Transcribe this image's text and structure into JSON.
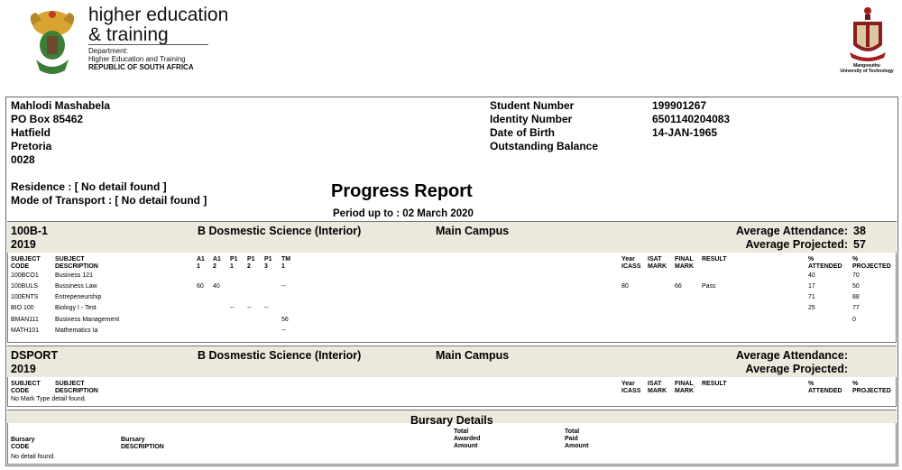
{
  "header": {
    "brand_line1": "higher education",
    "brand_line2": "& training",
    "dept_line1": "Department:",
    "dept_line2": "Higher Education and Training",
    "dept_line3": "REPUBLIC OF SOUTH AFRICA",
    "university_name_line1": "Mangosuthu",
    "university_name_line2": "University of Technology"
  },
  "student": {
    "name": "Mahlodi Mashabela",
    "address1": "PO Box 85462",
    "address2": "Hatfield",
    "address3": "Pretoria",
    "postal_code": "0028",
    "residence": "Residence : [ No detail found ]",
    "transport": "Mode of Transport : [ No detail found ]",
    "labels": [
      "Student Number",
      "Identity Number",
      "Date of Birth",
      "Outstanding Balance"
    ],
    "student_number": "199901267",
    "identity_number": "6501140204083",
    "date_of_birth": "14-JAN-1965",
    "outstanding_balance": ""
  },
  "report": {
    "title": "Progress Report",
    "period": "Period up to : 02 March 2020"
  },
  "columns": {
    "subject_code_1": "SUBJECT",
    "subject_code_2": "CODE",
    "subject_desc_1": "SUBJECT",
    "subject_desc_2": "DESCRIPTION",
    "a1a": "A1",
    "a1a_n": "1",
    "a1b": "A1",
    "a1b_n": "2",
    "p1a": "P1",
    "p1a_n": "1",
    "p1b": "P1",
    "p1b_n": "2",
    "p1c": "P1",
    "p1c_n": "3",
    "tm": "TM",
    "tm_n": "1",
    "year_1": "Year",
    "year_2": "ICASS",
    "isat_1": "ISAT",
    "isat_2": "MARK",
    "final_1": "FINAL",
    "final_2": "MARK",
    "result": "RESULT",
    "att_1": "%",
    "att_2": "ATTENDED",
    "proj_1": "%",
    "proj_2": "PROJECTED"
  },
  "block1": {
    "code": "100B-1",
    "year": "2019",
    "programme": "B Dosmestic Science (Interior)",
    "campus": "Main Campus",
    "avg_attendance_label": "Average Attendance:",
    "avg_attendance": "38",
    "avg_projected_label": "Average Projected:",
    "avg_projected": "57",
    "rows": [
      {
        "code": "100BCO1",
        "desc": "Business 121",
        "a1a": "",
        "a1b": "",
        "p1a": "",
        "p1b": "",
        "p1c": "",
        "tm": "",
        "year": "",
        "isat": "",
        "final": "",
        "result": "",
        "att": "40",
        "proj": "70"
      },
      {
        "code": "100BULS",
        "desc": "Bussiness Law",
        "a1a": "60",
        "a1b": "40",
        "p1a": "",
        "p1b": "",
        "p1c": "",
        "tm": "--",
        "year": "80",
        "isat": "",
        "final": "66",
        "result": "Pass",
        "att": "17",
        "proj": "50"
      },
      {
        "code": "100ENTS",
        "desc": "Entrepeneurship",
        "a1a": "",
        "a1b": "",
        "p1a": "",
        "p1b": "",
        "p1c": "",
        "tm": "",
        "year": "",
        "isat": "",
        "final": "",
        "result": "",
        "att": "71",
        "proj": "88"
      },
      {
        "code": "BIO 100",
        "desc": "Biology I - Test",
        "a1a": "",
        "a1b": "",
        "p1a": "--",
        "p1b": "--",
        "p1c": "--",
        "tm": "",
        "year": "",
        "isat": "",
        "final": "",
        "result": "",
        "att": "25",
        "proj": "77"
      },
      {
        "code": "BMAN111",
        "desc": "Business Management",
        "a1a": "",
        "a1b": "",
        "p1a": "",
        "p1b": "",
        "p1c": "",
        "tm": "56",
        "year": "",
        "isat": "",
        "final": "",
        "result": "",
        "att": "",
        "proj": "0"
      },
      {
        "code": "MATH101",
        "desc": "Mathematics Ia",
        "a1a": "",
        "a1b": "",
        "p1a": "",
        "p1b": "",
        "p1c": "",
        "tm": "--",
        "year": "",
        "isat": "",
        "final": "",
        "result": "",
        "att": "",
        "proj": ""
      }
    ]
  },
  "block2": {
    "code": "DSPORT",
    "year": "2019",
    "programme": "B Dosmestic Science (Interior)",
    "campus": "Main Campus",
    "avg_attendance_label": "Average Attendance:",
    "avg_projected_label": "Average Projected:",
    "no_detail": "No Mark Type detail found."
  },
  "bursary": {
    "title": "Bursary Details",
    "code_1": "Bursary",
    "code_2": "CODE",
    "desc_1": "Bursary",
    "desc_2": "DESCRIPTION",
    "awarded_1": "Total",
    "awarded_2": "Awarded",
    "awarded_3": "Amount",
    "paid_1": "Total",
    "paid_2": "Paid",
    "paid_3": "Amount",
    "no_detail": "No detail found."
  }
}
